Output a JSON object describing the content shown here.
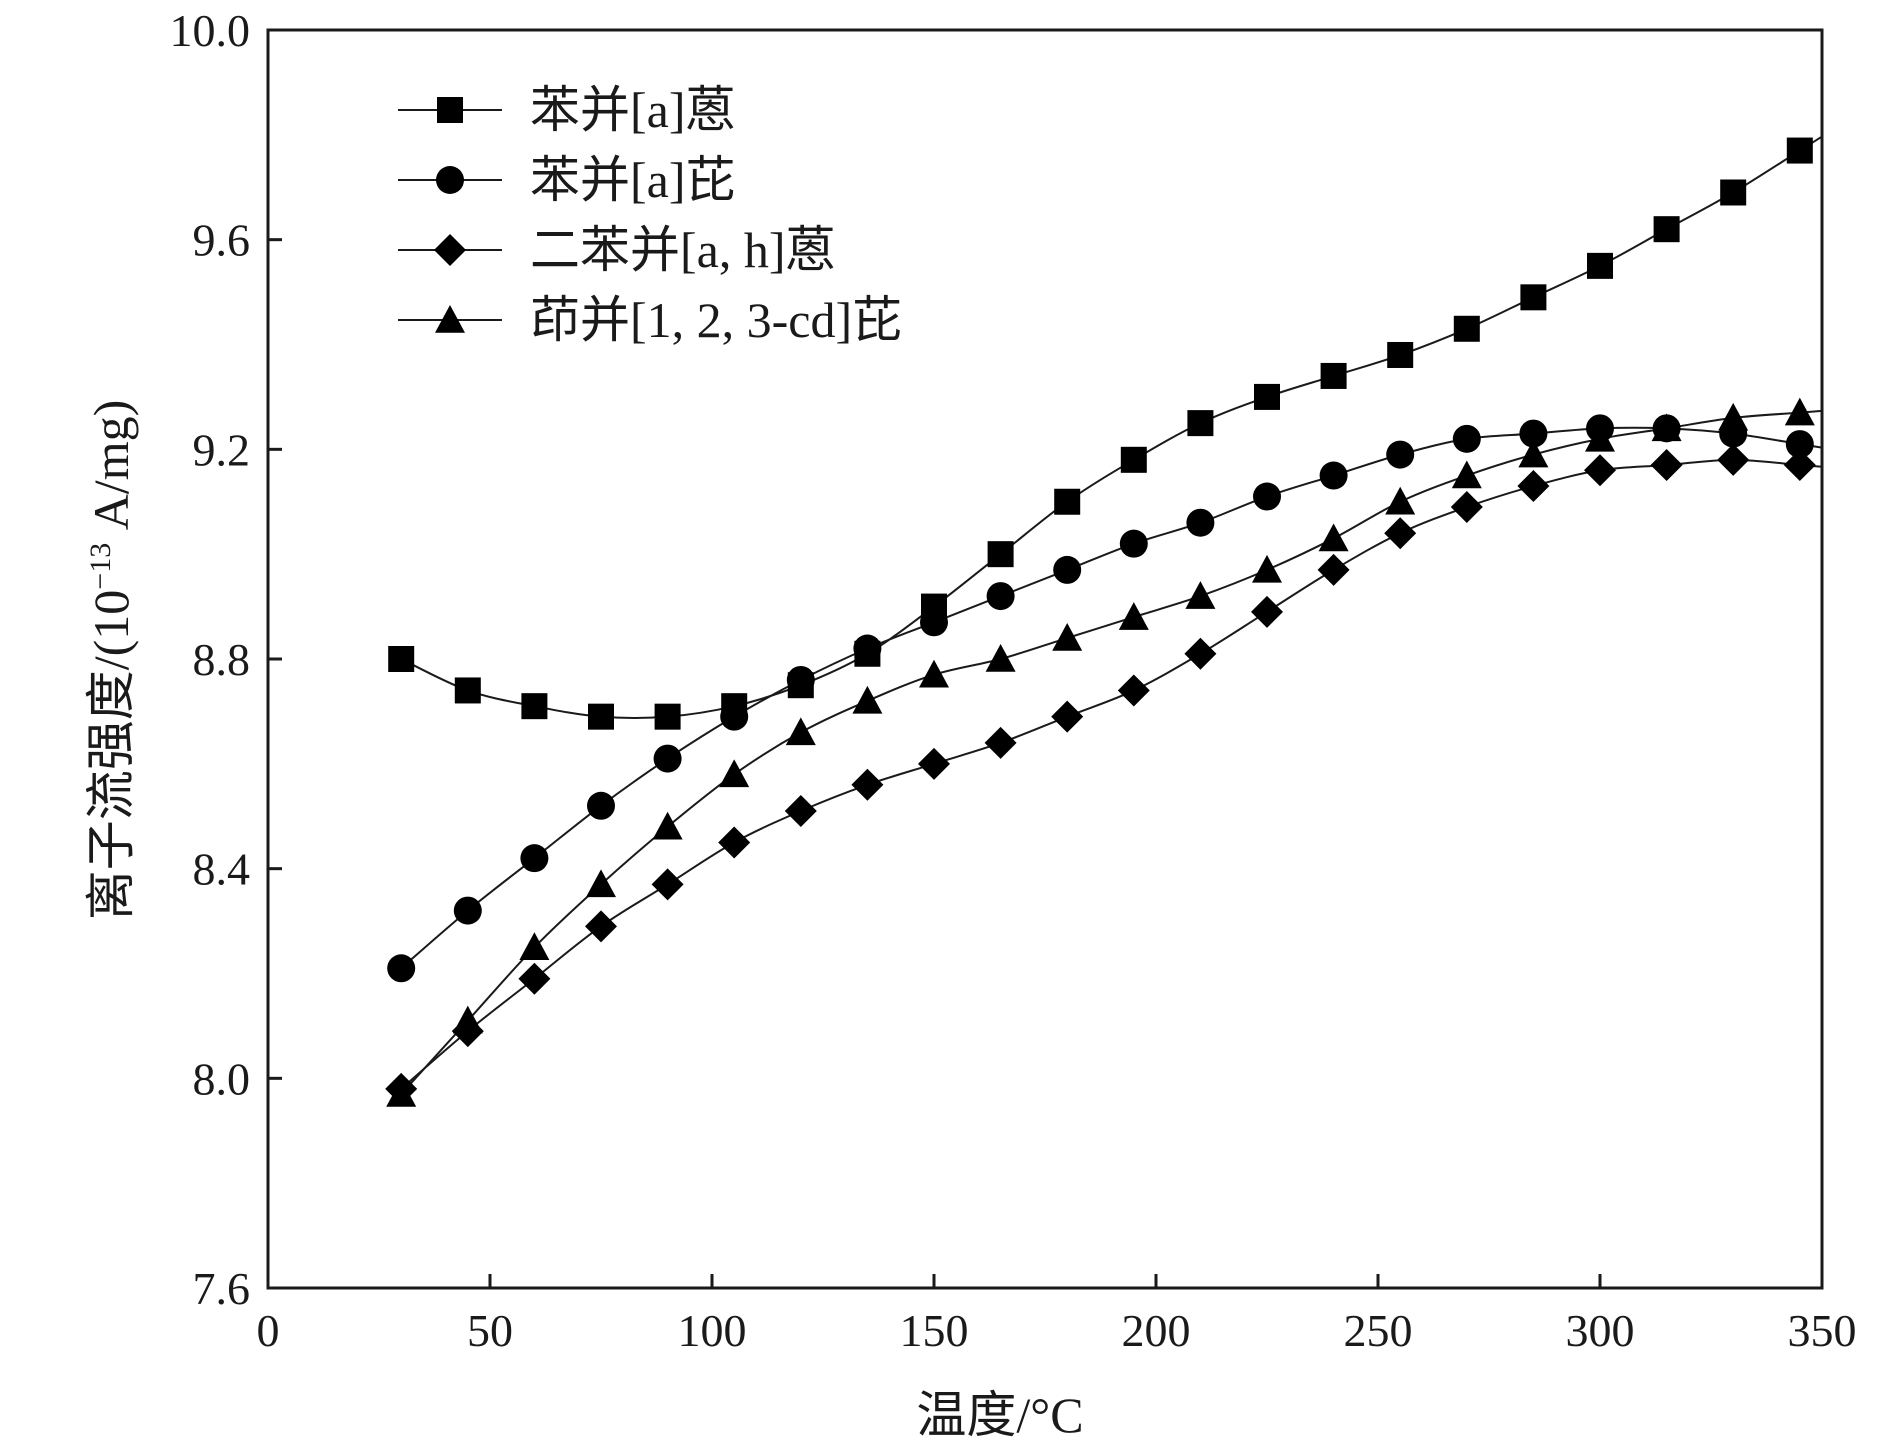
{
  "chart_data": {
    "type": "line",
    "title": "",
    "xlabel": "温度/°C",
    "ylabel": "离子流强度/(10",
    "ylabel_superscript": "−13",
    "ylabel_suffix": " A/mg)",
    "xlim": [
      0,
      350
    ],
    "ylim": [
      7.6,
      10.0
    ],
    "x_ticks": [
      0,
      50,
      100,
      150,
      200,
      250,
      300,
      350
    ],
    "x_tick_labels": [
      "0",
      "50",
      "100",
      "150",
      "200",
      "250",
      "300",
      "350"
    ],
    "y_ticks": [
      7.6,
      8.0,
      8.4,
      8.8,
      9.2,
      9.6,
      10.0
    ],
    "y_tick_labels": [
      "7.6",
      "8.0",
      "8.4",
      "8.8",
      "9.2",
      "9.6",
      "10.0"
    ],
    "grid": false,
    "legend_position": "top-left",
    "x": [
      30,
      45,
      60,
      75,
      90,
      105,
      120,
      135,
      150,
      165,
      180,
      195,
      210,
      225,
      240,
      255,
      270,
      285,
      300,
      315,
      330,
      345
    ],
    "series": [
      {
        "name": "苯并[a]蒽",
        "marker": "square",
        "values": [
          8.8,
          8.74,
          8.71,
          8.69,
          8.69,
          8.71,
          8.75,
          8.81,
          8.9,
          9.0,
          9.1,
          9.18,
          9.25,
          9.3,
          9.34,
          9.38,
          9.43,
          9.49,
          9.55,
          9.62,
          9.69,
          9.77
        ]
      },
      {
        "name": "苯并[a]芘",
        "marker": "circle",
        "values": [
          8.21,
          8.32,
          8.42,
          8.52,
          8.61,
          8.69,
          8.76,
          8.82,
          8.87,
          8.92,
          8.97,
          9.02,
          9.06,
          9.11,
          9.15,
          9.19,
          9.22,
          9.23,
          9.24,
          9.24,
          9.23,
          9.21
        ]
      },
      {
        "name": "二苯并[a, h]蒽",
        "marker": "diamond",
        "values": [
          7.98,
          8.09,
          8.19,
          8.29,
          8.37,
          8.45,
          8.51,
          8.56,
          8.6,
          8.64,
          8.69,
          8.74,
          8.81,
          8.89,
          8.97,
          9.04,
          9.09,
          9.13,
          9.16,
          9.17,
          9.18,
          9.17
        ]
      },
      {
        "name": "茚并[1, 2, 3-cd]芘",
        "marker": "triangle",
        "values": [
          7.97,
          8.11,
          8.25,
          8.37,
          8.48,
          8.58,
          8.66,
          8.72,
          8.77,
          8.8,
          8.84,
          8.88,
          8.92,
          8.97,
          9.03,
          9.1,
          9.15,
          9.19,
          9.22,
          9.24,
          9.26,
          9.27
        ]
      }
    ]
  }
}
